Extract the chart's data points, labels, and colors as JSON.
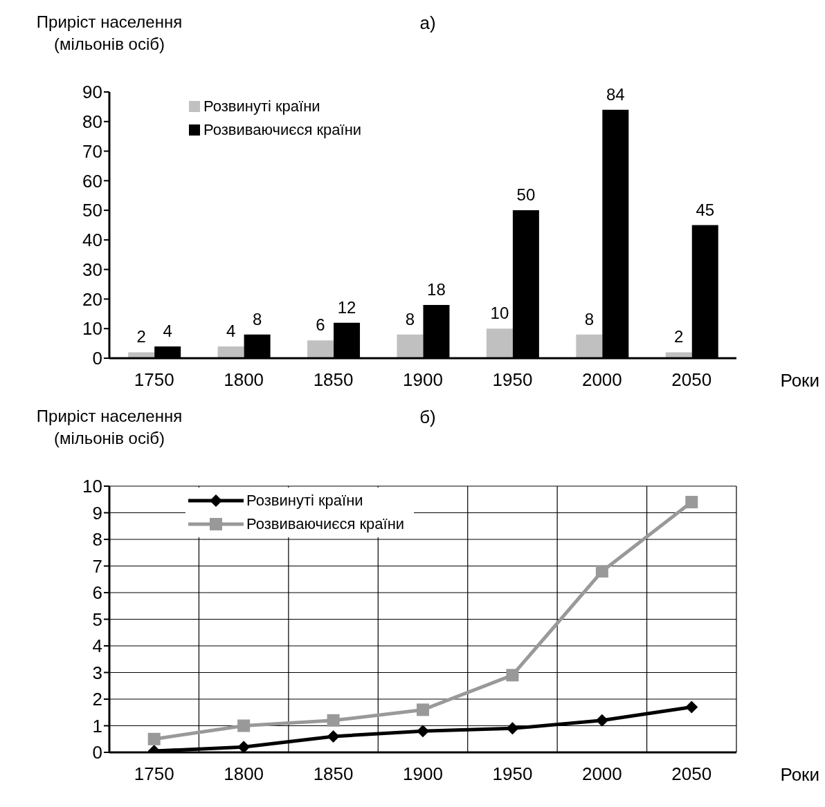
{
  "chart_data": [
    {
      "type": "bar",
      "title": "а)",
      "ylabel": "Приріст населення\n(мільонів осіб)",
      "xlabel": "Роки",
      "categories": [
        "1750",
        "1800",
        "1850",
        "1900",
        "1950",
        "2000",
        "2050"
      ],
      "series": [
        {
          "name": "Розвинуті країни",
          "color": "#c0c0c0",
          "values": [
            2,
            4,
            6,
            8,
            10,
            8,
            2
          ]
        },
        {
          "name": "Розвиваючиєся країни",
          "color": "#000000",
          "values": [
            4,
            8,
            12,
            18,
            50,
            84,
            45
          ]
        }
      ],
      "ylim": [
        0,
        90
      ],
      "yticks": [
        0,
        10,
        20,
        30,
        40,
        50,
        60,
        70,
        80,
        90
      ],
      "data_labels": true,
      "legend": "top left"
    },
    {
      "type": "line",
      "title": "б)",
      "ylabel": "Приріст населення\n(мільонів осіб)",
      "xlabel": "Роки",
      "categories": [
        "1750",
        "1800",
        "1850",
        "1900",
        "1950",
        "2000",
        "2050"
      ],
      "series": [
        {
          "name": "Розвинуті країни",
          "color": "#000000",
          "marker": "diamond",
          "values": [
            0.05,
            0.2,
            0.6,
            0.8,
            0.9,
            1.2,
            1.7
          ]
        },
        {
          "name": "Розвиваючиєся країни",
          "color": "#999999",
          "marker": "square",
          "values": [
            0.5,
            1.0,
            1.2,
            1.6,
            2.9,
            6.8,
            9.4
          ]
        }
      ],
      "ylim": [
        0,
        10
      ],
      "yticks": [
        0,
        1,
        2,
        3,
        4,
        5,
        6,
        7,
        8,
        9,
        10
      ],
      "grid": true,
      "legend": "top left"
    }
  ]
}
